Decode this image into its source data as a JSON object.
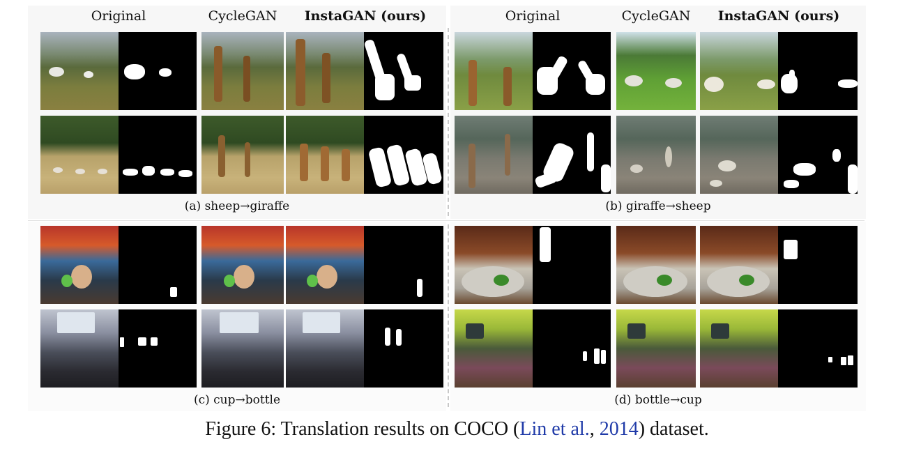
{
  "headers": {
    "original": "Original",
    "cyclegan": "CycleGAN",
    "instagan": "InstaGAN (ours)"
  },
  "subcaptions": {
    "a": "(a) sheep→giraffe",
    "b": "(b) giraffe→sheep",
    "c": "(c) cup→bottle",
    "d": "(d) bottle→cup"
  },
  "caption": {
    "prefix": "Figure 6: Translation results on COCO (",
    "cite_author": "Lin et al.",
    "sep": ", ",
    "cite_year": "2014",
    "suffix": ") dataset."
  },
  "colors": {
    "link": "#1f3aa8",
    "mask_bg": "#000000",
    "mask_fg": "#ffffff"
  },
  "panels": [
    {
      "id": "a",
      "task": "sheep to giraffe"
    },
    {
      "id": "b",
      "task": "giraffe to sheep"
    },
    {
      "id": "c",
      "task": "cup to bottle"
    },
    {
      "id": "d",
      "task": "bottle to cup"
    }
  ]
}
